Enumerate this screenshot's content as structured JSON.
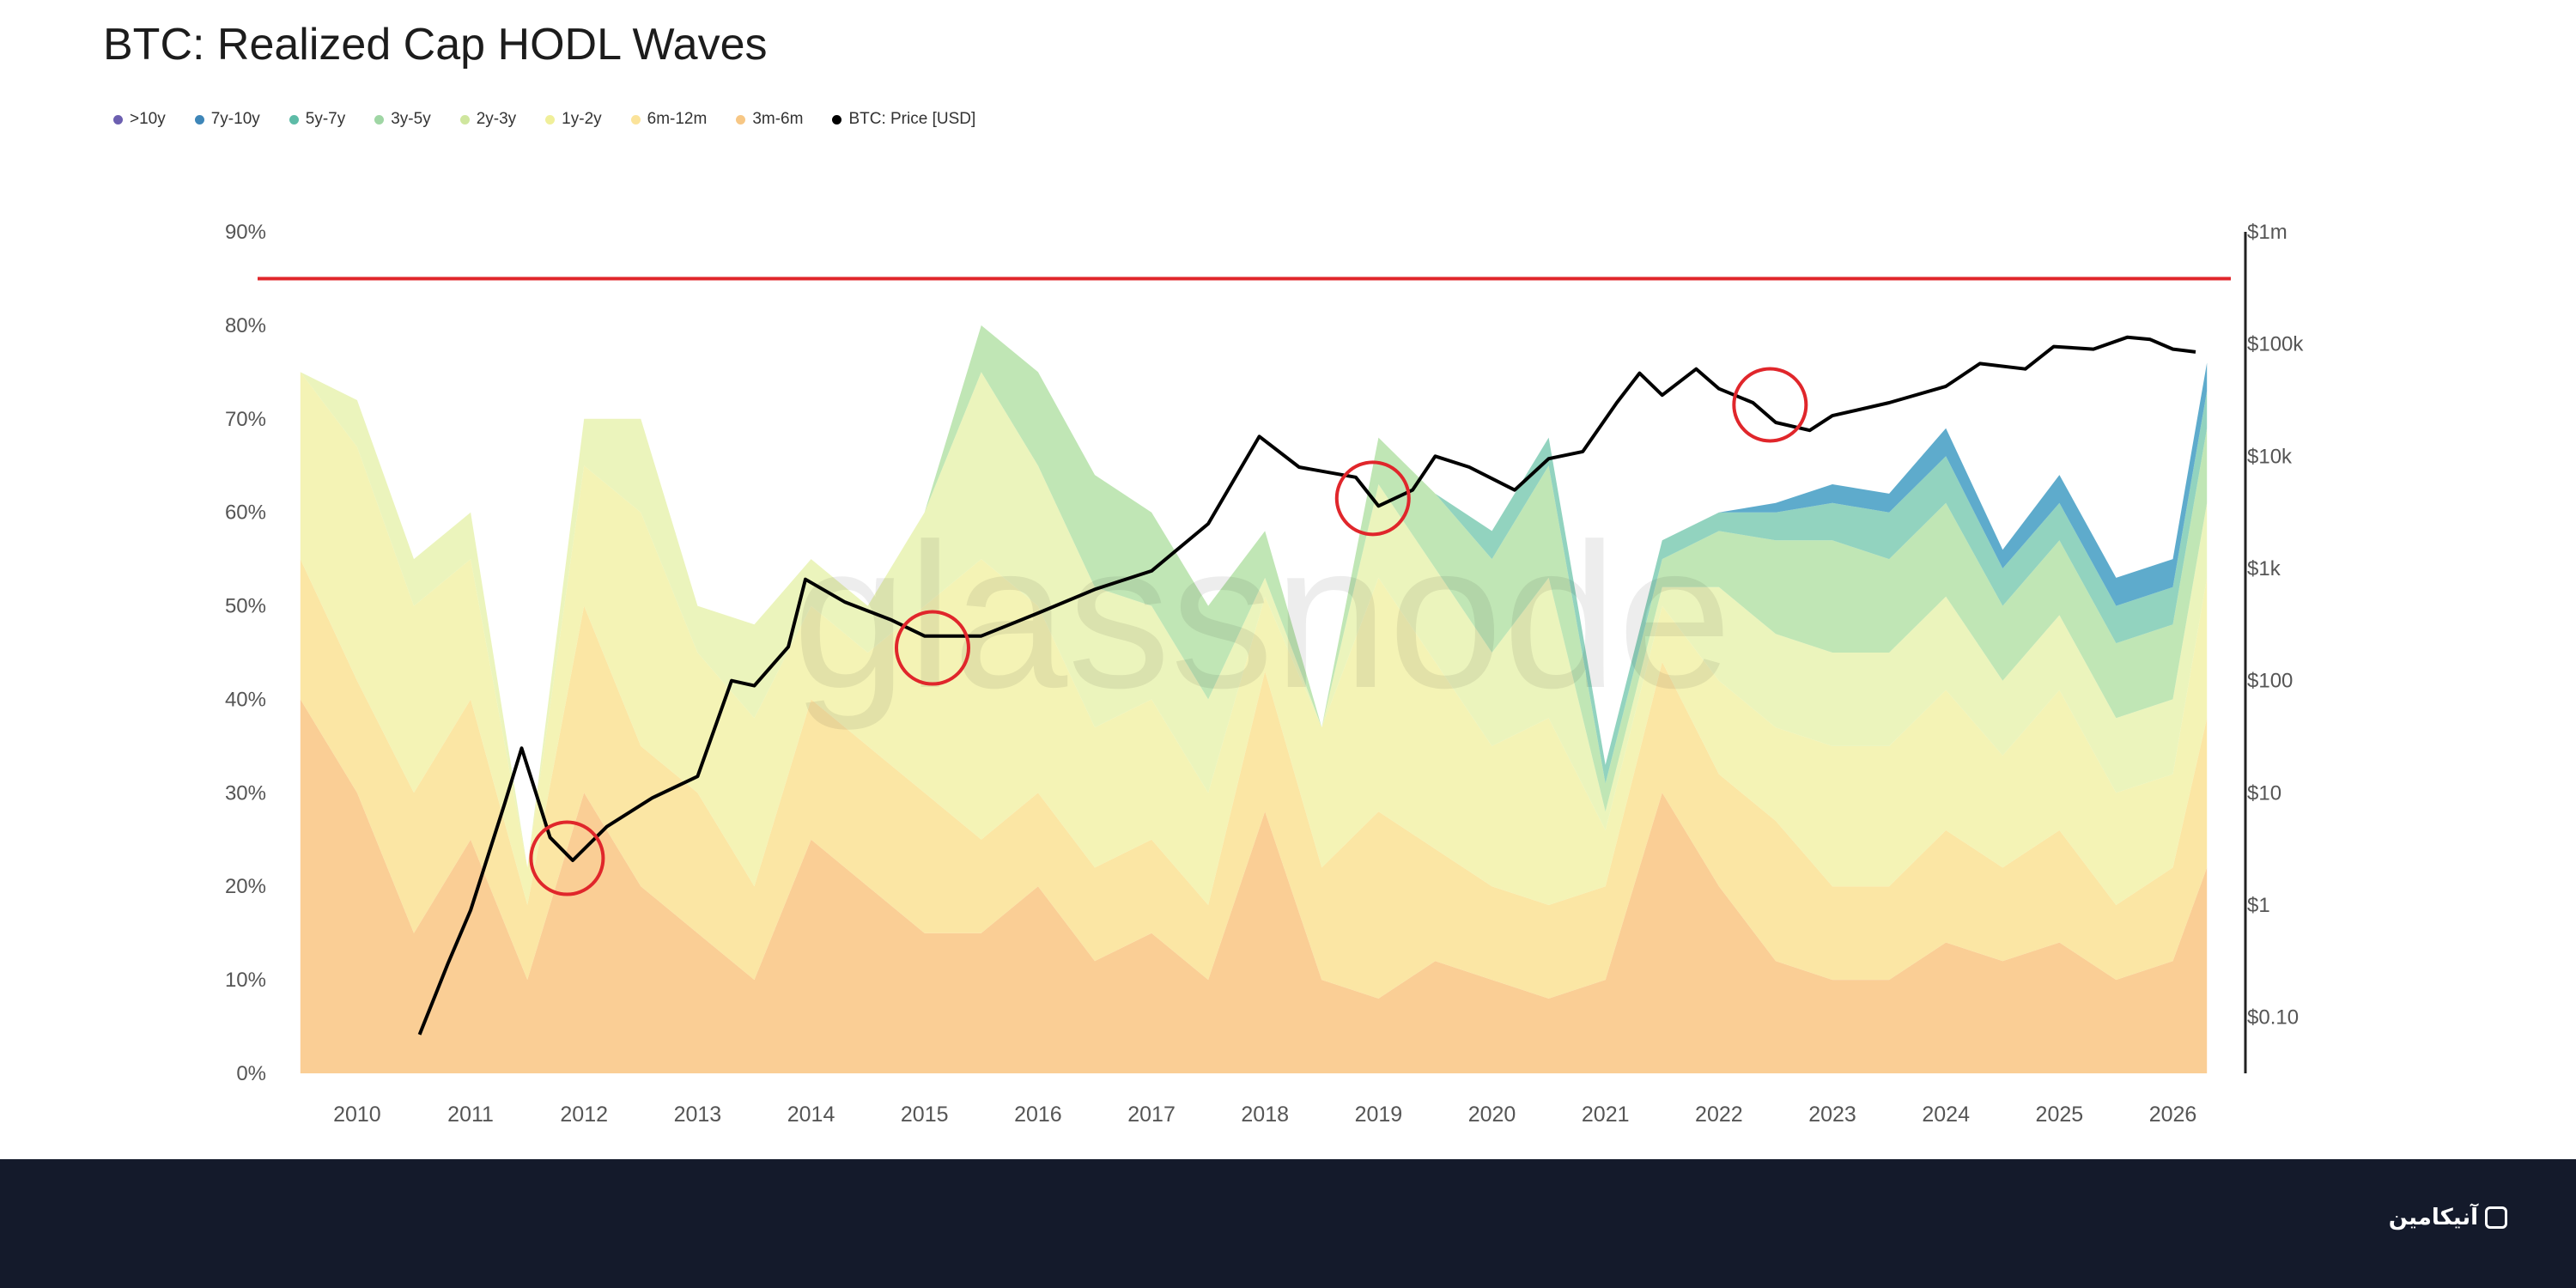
{
  "chart_data": {
    "type": "area",
    "title": "BTC: Realized Cap HODL Waves",
    "watermark": "glassnode",
    "x": [
      2009.5,
      2010,
      2010.5,
      2011,
      2011.5,
      2012,
      2012.5,
      2013,
      2013.5,
      2014,
      2014.5,
      2015,
      2015.5,
      2016,
      2016.5,
      2017,
      2017.5,
      2018,
      2018.5,
      2019,
      2019.5,
      2020,
      2020.5,
      2021,
      2021.5,
      2022,
      2022.5,
      2023,
      2023.5,
      2024,
      2024.5,
      2025,
      2025.5,
      2026,
      2026.3
    ],
    "xticks": [
      "2010",
      "2011",
      "2012",
      "2013",
      "2014",
      "2015",
      "2016",
      "2017",
      "2018",
      "2019",
      "2020",
      "2021",
      "2022",
      "2023",
      "2024",
      "2025",
      "2026"
    ],
    "yticks_left": [
      "0%",
      "10%",
      "20%",
      "30%",
      "40%",
      "50%",
      "60%",
      "70%",
      "80%",
      "90%"
    ],
    "ylim_left": [
      0,
      90
    ],
    "yticks_right": [
      "$0.10",
      "$1",
      "$10",
      "$100",
      "$1k",
      "$10k",
      "$100k",
      "$1m"
    ],
    "ylim_right_log10": [
      -1.5,
      6
    ],
    "series": [
      {
        "name": "3m-6m",
        "color": "#f9c98a",
        "values": [
          40,
          30,
          15,
          25,
          10,
          30,
          20,
          15,
          10,
          25,
          20,
          15,
          15,
          20,
          12,
          15,
          10,
          28,
          10,
          8,
          12,
          10,
          8,
          10,
          30,
          20,
          12,
          10,
          10,
          14,
          12,
          14,
          10,
          12,
          22
        ]
      },
      {
        "name": "6m-12m",
        "color": "#fbe39a",
        "values": [
          15,
          12,
          15,
          15,
          8,
          20,
          15,
          15,
          10,
          15,
          15,
          15,
          10,
          10,
          10,
          10,
          8,
          15,
          12,
          20,
          12,
          10,
          10,
          10,
          14,
          12,
          15,
          10,
          10,
          12,
          10,
          12,
          8,
          10,
          16
        ]
      },
      {
        "name": "1y-2y",
        "color": "#f3f2ad",
        "values": [
          20,
          25,
          20,
          15,
          4,
          15,
          25,
          15,
          18,
          10,
          10,
          20,
          30,
          20,
          15,
          15,
          12,
          8,
          15,
          25,
          20,
          15,
          20,
          6,
          6,
          10,
          10,
          15,
          15,
          15,
          12,
          15,
          12,
          10,
          15
        ]
      },
      {
        "name": "2y-3y",
        "color": "#e9f3b5",
        "values": [
          0,
          5,
          5,
          5,
          0,
          5,
          10,
          5,
          10,
          5,
          5,
          10,
          20,
          15,
          15,
          10,
          10,
          2,
          0,
          10,
          10,
          10,
          15,
          2,
          2,
          10,
          10,
          10,
          10,
          10,
          8,
          8,
          8,
          8,
          8
        ]
      },
      {
        "name": "3y-5y",
        "color": "#b9e3ad",
        "values": [
          0,
          0,
          0,
          0,
          0,
          0,
          0,
          0,
          0,
          0,
          0,
          0,
          5,
          10,
          12,
          10,
          10,
          5,
          0,
          5,
          8,
          10,
          12,
          3,
          3,
          6,
          10,
          12,
          10,
          10,
          8,
          8,
          8,
          8,
          8
        ]
      },
      {
        "name": "5y-7y",
        "color": "#86ceb8",
        "values": [
          0,
          0,
          0,
          0,
          0,
          0,
          0,
          0,
          0,
          0,
          0,
          0,
          0,
          0,
          0,
          0,
          0,
          0,
          0,
          0,
          0,
          3,
          3,
          2,
          2,
          2,
          3,
          4,
          5,
          5,
          4,
          4,
          4,
          4,
          4
        ]
      },
      {
        "name": "7y-10y",
        "color": "#4da2c6",
        "values": [
          0,
          0,
          0,
          0,
          0,
          0,
          0,
          0,
          0,
          0,
          0,
          0,
          0,
          0,
          0,
          0,
          0,
          0,
          0,
          0,
          0,
          0,
          0,
          0,
          0,
          0,
          1,
          2,
          2,
          3,
          2,
          3,
          3,
          3,
          3
        ]
      },
      {
        "name": ">10y",
        "color": "#6c5fb0",
        "values": [
          0,
          0,
          0,
          0,
          0,
          0,
          0,
          0,
          0,
          0,
          0,
          0,
          0,
          0,
          0,
          0,
          0,
          0,
          0,
          0,
          0,
          0,
          0,
          0,
          0,
          0,
          0,
          0,
          0,
          0,
          0,
          0,
          0,
          0,
          0
        ]
      }
    ],
    "price_series": {
      "name": "BTC: Price [USD]",
      "color": "#000000",
      "x": [
        2010.55,
        2010.8,
        2011.0,
        2011.3,
        2011.45,
        2011.7,
        2011.9,
        2012.2,
        2012.6,
        2013.0,
        2013.3,
        2013.5,
        2013.8,
        2013.95,
        2014.3,
        2014.7,
        2015.0,
        2015.5,
        2016.0,
        2016.5,
        2017.0,
        2017.5,
        2017.95,
        2018.3,
        2018.8,
        2019.0,
        2019.3,
        2019.5,
        2019.8,
        2020.2,
        2020.5,
        2020.8,
        2021.1,
        2021.3,
        2021.5,
        2021.8,
        2022.0,
        2022.3,
        2022.5,
        2022.8,
        2023.0,
        2023.5,
        2024.0,
        2024.3,
        2024.7,
        2024.95,
        2025.3,
        2025.6,
        2025.8,
        2026.0,
        2026.2
      ],
      "y": [
        0.07,
        0.3,
        0.9,
        8,
        25,
        4,
        2.5,
        5,
        9,
        14,
        100,
        90,
        200,
        800,
        500,
        350,
        250,
        250,
        400,
        650,
        950,
        2500,
        15000,
        8000,
        6500,
        3600,
        5000,
        10000,
        8000,
        5000,
        9500,
        11000,
        30000,
        55000,
        35000,
        60000,
        40000,
        30000,
        20000,
        17000,
        23000,
        30000,
        42000,
        67000,
        60000,
        95000,
        90000,
        115000,
        110000,
        90000,
        85000
      ]
    },
    "annotations": {
      "threshold_line": {
        "value_percent": 85,
        "color": "#e0262b"
      },
      "circled_points": [
        {
          "year": 2011.85,
          "value_percent": 23
        },
        {
          "year": 2015.07,
          "value_percent": 45.5
        },
        {
          "year": 2018.95,
          "value_percent": 61.5
        },
        {
          "year": 2022.45,
          "value_percent": 71.5
        }
      ]
    }
  },
  "legend": [
    {
      "label": ">10y",
      "color": "#6c5fb0"
    },
    {
      "label": "7y-10y",
      "color": "#3e86b8"
    },
    {
      "label": "5y-7y",
      "color": "#5dbba7"
    },
    {
      "label": "3y-5y",
      "color": "#9fd6a4"
    },
    {
      "label": "2y-3y",
      "color": "#cfe69e"
    },
    {
      "label": "1y-2y",
      "color": "#f0ef9a"
    },
    {
      "label": "6m-12m",
      "color": "#fbe39a"
    },
    {
      "label": "3m-6m",
      "color": "#f7c785"
    },
    {
      "label": "BTC: Price [USD]",
      "color": "#000000"
    }
  ],
  "footer": {
    "brand": "آنیکامین"
  }
}
